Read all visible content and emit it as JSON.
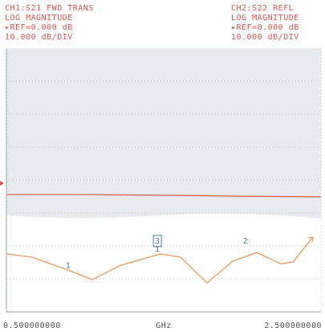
{
  "chart_data": {
    "type": "line",
    "header_left": [
      "CH1:S21 FWD TRANS",
      "LOG MAGNITUDE",
      "▸REF=0.000 dB",
      "10.000 dB/DIV"
    ],
    "header_right": [
      "CH2:S22 REFL",
      "LOG MAGNITUDE",
      "▸REF=0.000 dB",
      "10.000 dB/DIV"
    ],
    "x_label": "GHz",
    "series": [
      {
        "name": "S21",
        "color": "#d9534f",
        "x": [
          0.5,
          1.0,
          1.5,
          2.0,
          2.5
        ],
        "values": [
          -4.4,
          -4.4,
          -4.6,
          -4.9,
          -5.1
        ]
      },
      {
        "name": "S22",
        "color": "#e8904a",
        "x": [
          0.5,
          0.663,
          0.893,
          1.046,
          1.224,
          1.48,
          1.607,
          1.776,
          1.939,
          2.092,
          2.245,
          2.321,
          2.449
        ],
        "values": [
          -22.4,
          -23.4,
          -27.3,
          -30.2,
          -25.9,
          -22.4,
          -23.4,
          -31.2,
          -24.6,
          -22.0,
          -25.4,
          -24.9,
          -17.3
        ]
      }
    ],
    "annotations": [
      {
        "text": "1",
        "x": 0.893,
        "y": -26.0
      },
      {
        "text": "3",
        "x": 1.46,
        "y": -18.5
      },
      {
        "text": "1",
        "x": 1.46,
        "y": -21.0
      },
      {
        "text": "2",
        "x": 2.02,
        "y": -18.5
      }
    ],
    "xlim": [
      0.5,
      2.5
    ],
    "xticks": [
      {
        "value": 0.5,
        "label": "0.500000000"
      },
      {
        "value": 2.5,
        "label": "2.500000000"
      }
    ],
    "ylim": [
      -40,
      40
    ],
    "y_gridlines": [
      -30,
      -20,
      -10,
      0,
      10,
      20,
      30
    ],
    "grid": true
  }
}
